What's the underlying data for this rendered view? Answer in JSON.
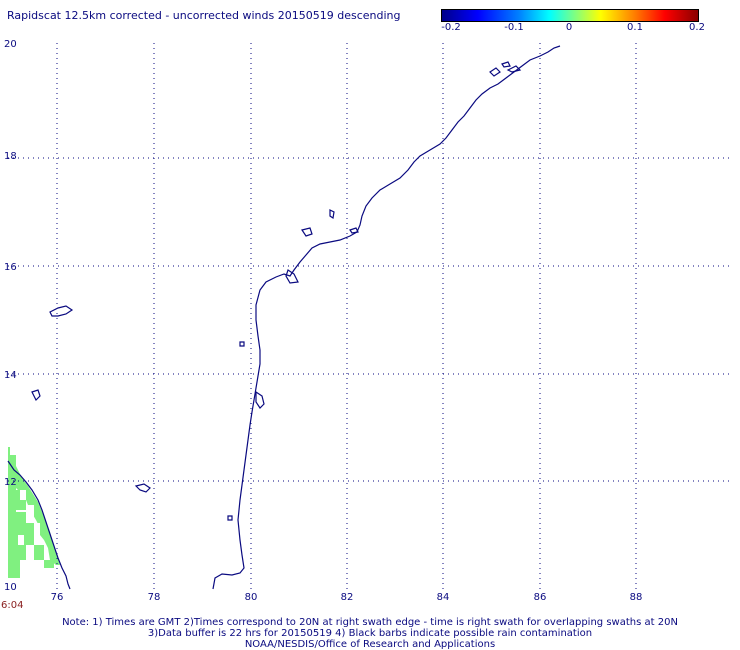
{
  "title": "Rapidscat 12.5km corrected - uncorrected winds 20150519 descending",
  "colorbar": {
    "ticks": [
      "-0.2",
      "-0.1",
      "0",
      "0.1",
      "0.2"
    ],
    "colors": [
      "#00008a",
      "#0000ff",
      "#00ffff",
      "#ffff00",
      "#ff0000",
      "#8a0000"
    ]
  },
  "map": {
    "lon_labels": [
      "76",
      "78",
      "80",
      "82",
      "84",
      "86",
      "88"
    ],
    "lat_labels": [
      "20",
      "18",
      "16",
      "14",
      "12",
      "10"
    ],
    "coast_color": "#0a0a80",
    "wind_patch_color": "#80f080"
  },
  "time_label": "6:04",
  "notes": [
    "Note: 1) Times are GMT 2)Times correspond to 20N at right swath edge - time is right swath for overlapping swaths at 20N",
    "3)Data buffer is 22 hrs for 20150519 4) Black barbs indicate possible rain contamination",
    "NOAA/NESDIS/Office of Research and Applications"
  ]
}
